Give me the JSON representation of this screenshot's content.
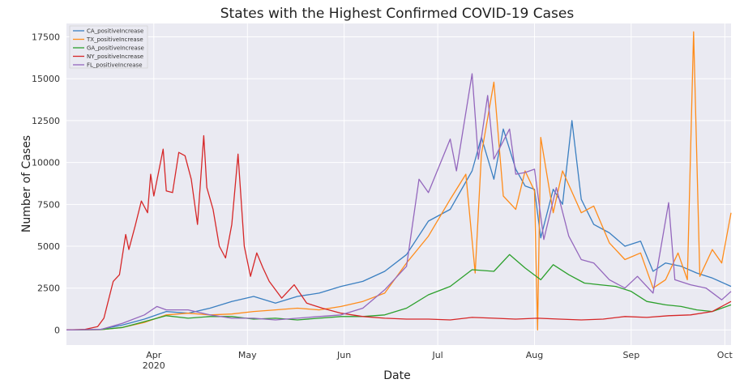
{
  "chart_data": {
    "type": "line",
    "title": "States with the Highest Confirmed COVID-19 Cases",
    "xlabel": "Date",
    "ylabel": "Number of Cases",
    "x_range": [
      "2020-03-04",
      "2020-10-03"
    ],
    "ylim": [
      -900,
      18300
    ],
    "grid": true,
    "legend_position": "top-left",
    "x_ticks": [
      {
        "date": "2020-04-01",
        "label": "Apr",
        "sub": "2020"
      },
      {
        "date": "2020-05-01",
        "label": "May",
        "sub": ""
      },
      {
        "date": "2020-06-01",
        "label": "Jun",
        "sub": ""
      },
      {
        "date": "2020-07-01",
        "label": "Jul",
        "sub": ""
      },
      {
        "date": "2020-08-01",
        "label": "Aug",
        "sub": ""
      },
      {
        "date": "2020-09-01",
        "label": "Sep",
        "sub": ""
      },
      {
        "date": "2020-10-01",
        "label": "Oct",
        "sub": ""
      }
    ],
    "y_ticks": [
      0,
      2500,
      5000,
      7500,
      10000,
      12500,
      15000,
      17500
    ],
    "series": [
      {
        "name": "CA_positiveIncrease",
        "color": "#3a7fc1",
        "points": [
          [
            "2020-03-04",
            0
          ],
          [
            "2020-03-15",
            40
          ],
          [
            "2020-03-22",
            300
          ],
          [
            "2020-03-29",
            650
          ],
          [
            "2020-04-05",
            1100
          ],
          [
            "2020-04-12",
            1000
          ],
          [
            "2020-04-19",
            1300
          ],
          [
            "2020-04-26",
            1700
          ],
          [
            "2020-05-03",
            2000
          ],
          [
            "2020-05-10",
            1600
          ],
          [
            "2020-05-17",
            2000
          ],
          [
            "2020-05-24",
            2200
          ],
          [
            "2020-05-31",
            2600
          ],
          [
            "2020-06-07",
            2900
          ],
          [
            "2020-06-14",
            3500
          ],
          [
            "2020-06-21",
            4500
          ],
          [
            "2020-06-28",
            6500
          ],
          [
            "2020-07-05",
            7200
          ],
          [
            "2020-07-12",
            9500
          ],
          [
            "2020-07-15",
            11500
          ],
          [
            "2020-07-19",
            9000
          ],
          [
            "2020-07-22",
            12000
          ],
          [
            "2020-07-26",
            9600
          ],
          [
            "2020-07-29",
            8600
          ],
          [
            "2020-08-01",
            8400
          ],
          [
            "2020-08-03",
            5500
          ],
          [
            "2020-08-07",
            8400
          ],
          [
            "2020-08-10",
            7500
          ],
          [
            "2020-08-13",
            12500
          ],
          [
            "2020-08-16",
            7800
          ],
          [
            "2020-08-20",
            6300
          ],
          [
            "2020-08-25",
            5800
          ],
          [
            "2020-08-30",
            5000
          ],
          [
            "2020-09-04",
            5300
          ],
          [
            "2020-09-08",
            3500
          ],
          [
            "2020-09-12",
            4000
          ],
          [
            "2020-09-17",
            3800
          ],
          [
            "2020-09-22",
            3400
          ],
          [
            "2020-09-27",
            3100
          ],
          [
            "2020-10-03",
            2600
          ]
        ]
      },
      {
        "name": "TX_positiveIncrease",
        "color": "#ff8c1a",
        "points": [
          [
            "2020-03-04",
            0
          ],
          [
            "2020-03-15",
            20
          ],
          [
            "2020-03-22",
            150
          ],
          [
            "2020-03-29",
            450
          ],
          [
            "2020-04-05",
            900
          ],
          [
            "2020-04-12",
            1000
          ],
          [
            "2020-04-19",
            900
          ],
          [
            "2020-04-26",
            950
          ],
          [
            "2020-05-03",
            1100
          ],
          [
            "2020-05-10",
            1200
          ],
          [
            "2020-05-17",
            1300
          ],
          [
            "2020-05-24",
            1200
          ],
          [
            "2020-05-31",
            1400
          ],
          [
            "2020-06-07",
            1700
          ],
          [
            "2020-06-14",
            2200
          ],
          [
            "2020-06-21",
            4000
          ],
          [
            "2020-06-28",
            5600
          ],
          [
            "2020-07-05",
            7800
          ],
          [
            "2020-07-10",
            9300
          ],
          [
            "2020-07-13",
            3400
          ],
          [
            "2020-07-15",
            10500
          ],
          [
            "2020-07-19",
            14800
          ],
          [
            "2020-07-22",
            8000
          ],
          [
            "2020-07-26",
            7200
          ],
          [
            "2020-07-29",
            9500
          ],
          [
            "2020-08-01",
            8300
          ],
          [
            "2020-08-02",
            0
          ],
          [
            "2020-08-03",
            11500
          ],
          [
            "2020-08-07",
            7000
          ],
          [
            "2020-08-10",
            9500
          ],
          [
            "2020-08-16",
            7000
          ],
          [
            "2020-08-20",
            7400
          ],
          [
            "2020-08-25",
            5200
          ],
          [
            "2020-08-30",
            4200
          ],
          [
            "2020-09-04",
            4600
          ],
          [
            "2020-09-08",
            2500
          ],
          [
            "2020-09-12",
            3000
          ],
          [
            "2020-09-16",
            4600
          ],
          [
            "2020-09-19",
            3000
          ],
          [
            "2020-09-21",
            17800
          ],
          [
            "2020-09-23",
            3200
          ],
          [
            "2020-09-27",
            4800
          ],
          [
            "2020-09-30",
            4000
          ],
          [
            "2020-10-03",
            7000
          ]
        ]
      },
      {
        "name": "GA_positiveIncrease",
        "color": "#2ca02c",
        "points": [
          [
            "2020-03-04",
            0
          ],
          [
            "2020-03-15",
            20
          ],
          [
            "2020-03-22",
            150
          ],
          [
            "2020-03-29",
            500
          ],
          [
            "2020-04-05",
            850
          ],
          [
            "2020-04-12",
            700
          ],
          [
            "2020-04-19",
            800
          ],
          [
            "2020-04-26",
            800
          ],
          [
            "2020-05-03",
            650
          ],
          [
            "2020-05-10",
            700
          ],
          [
            "2020-05-17",
            600
          ],
          [
            "2020-05-24",
            700
          ],
          [
            "2020-05-31",
            800
          ],
          [
            "2020-06-07",
            800
          ],
          [
            "2020-06-14",
            900
          ],
          [
            "2020-06-21",
            1300
          ],
          [
            "2020-06-28",
            2100
          ],
          [
            "2020-07-05",
            2600
          ],
          [
            "2020-07-12",
            3600
          ],
          [
            "2020-07-19",
            3500
          ],
          [
            "2020-07-24",
            4500
          ],
          [
            "2020-07-29",
            3700
          ],
          [
            "2020-08-03",
            3000
          ],
          [
            "2020-08-07",
            3900
          ],
          [
            "2020-08-12",
            3300
          ],
          [
            "2020-08-17",
            2800
          ],
          [
            "2020-08-22",
            2700
          ],
          [
            "2020-08-27",
            2600
          ],
          [
            "2020-09-01",
            2300
          ],
          [
            "2020-09-06",
            1700
          ],
          [
            "2020-09-12",
            1500
          ],
          [
            "2020-09-17",
            1400
          ],
          [
            "2020-09-22",
            1200
          ],
          [
            "2020-09-27",
            1100
          ],
          [
            "2020-10-03",
            1500
          ]
        ]
      },
      {
        "name": "NY_positiveIncrease",
        "color": "#d62728",
        "points": [
          [
            "2020-03-04",
            0
          ],
          [
            "2020-03-10",
            40
          ],
          [
            "2020-03-14",
            200
          ],
          [
            "2020-03-16",
            700
          ],
          [
            "2020-03-19",
            2900
          ],
          [
            "2020-03-21",
            3300
          ],
          [
            "2020-03-23",
            5700
          ],
          [
            "2020-03-24",
            4800
          ],
          [
            "2020-03-26",
            6200
          ],
          [
            "2020-03-28",
            7700
          ],
          [
            "2020-03-30",
            7000
          ],
          [
            "2020-03-31",
            9300
          ],
          [
            "2020-04-01",
            8000
          ],
          [
            "2020-04-04",
            10800
          ],
          [
            "2020-04-05",
            8300
          ],
          [
            "2020-04-07",
            8200
          ],
          [
            "2020-04-09",
            10600
          ],
          [
            "2020-04-11",
            10400
          ],
          [
            "2020-04-13",
            9000
          ],
          [
            "2020-04-15",
            6300
          ],
          [
            "2020-04-17",
            11600
          ],
          [
            "2020-04-18",
            8500
          ],
          [
            "2020-04-20",
            7200
          ],
          [
            "2020-04-22",
            5000
          ],
          [
            "2020-04-24",
            4300
          ],
          [
            "2020-04-26",
            6300
          ],
          [
            "2020-04-28",
            10500
          ],
          [
            "2020-04-30",
            5000
          ],
          [
            "2020-05-02",
            3200
          ],
          [
            "2020-05-04",
            4600
          ],
          [
            "2020-05-06",
            3700
          ],
          [
            "2020-05-08",
            2900
          ],
          [
            "2020-05-12",
            1900
          ],
          [
            "2020-05-16",
            2700
          ],
          [
            "2020-05-20",
            1600
          ],
          [
            "2020-05-25",
            1300
          ],
          [
            "2020-05-31",
            1000
          ],
          [
            "2020-06-07",
            800
          ],
          [
            "2020-06-14",
            700
          ],
          [
            "2020-06-21",
            650
          ],
          [
            "2020-06-28",
            650
          ],
          [
            "2020-07-05",
            600
          ],
          [
            "2020-07-12",
            750
          ],
          [
            "2020-07-19",
            700
          ],
          [
            "2020-07-26",
            650
          ],
          [
            "2020-08-02",
            700
          ],
          [
            "2020-08-09",
            650
          ],
          [
            "2020-08-16",
            600
          ],
          [
            "2020-08-23",
            650
          ],
          [
            "2020-08-30",
            800
          ],
          [
            "2020-09-06",
            750
          ],
          [
            "2020-09-13",
            850
          ],
          [
            "2020-09-20",
            900
          ],
          [
            "2020-09-27",
            1100
          ],
          [
            "2020-10-03",
            1700
          ]
        ]
      },
      {
        "name": "FL_positiveIncrease",
        "color": "#9467bd",
        "points": [
          [
            "2020-03-04",
            0
          ],
          [
            "2020-03-15",
            30
          ],
          [
            "2020-03-22",
            400
          ],
          [
            "2020-03-29",
            900
          ],
          [
            "2020-04-02",
            1400
          ],
          [
            "2020-04-05",
            1200
          ],
          [
            "2020-04-12",
            1200
          ],
          [
            "2020-04-19",
            900
          ],
          [
            "2020-04-26",
            700
          ],
          [
            "2020-05-03",
            700
          ],
          [
            "2020-05-10",
            600
          ],
          [
            "2020-05-17",
            700
          ],
          [
            "2020-05-24",
            800
          ],
          [
            "2020-05-31",
            900
          ],
          [
            "2020-06-07",
            1300
          ],
          [
            "2020-06-14",
            2400
          ],
          [
            "2020-06-21",
            3800
          ],
          [
            "2020-06-25",
            9000
          ],
          [
            "2020-06-28",
            8200
          ],
          [
            "2020-07-05",
            11400
          ],
          [
            "2020-07-07",
            9500
          ],
          [
            "2020-07-12",
            15300
          ],
          [
            "2020-07-14",
            10200
          ],
          [
            "2020-07-17",
            14000
          ],
          [
            "2020-07-19",
            10200
          ],
          [
            "2020-07-24",
            12000
          ],
          [
            "2020-07-26",
            9300
          ],
          [
            "2020-07-29",
            9400
          ],
          [
            "2020-08-01",
            9600
          ],
          [
            "2020-08-04",
            5400
          ],
          [
            "2020-08-08",
            8500
          ],
          [
            "2020-08-12",
            5600
          ],
          [
            "2020-08-16",
            4200
          ],
          [
            "2020-08-20",
            4000
          ],
          [
            "2020-08-25",
            3000
          ],
          [
            "2020-08-30",
            2500
          ],
          [
            "2020-09-03",
            3200
          ],
          [
            "2020-09-08",
            2200
          ],
          [
            "2020-09-13",
            7600
          ],
          [
            "2020-09-15",
            3000
          ],
          [
            "2020-09-20",
            2700
          ],
          [
            "2020-09-25",
            2500
          ],
          [
            "2020-09-30",
            1800
          ],
          [
            "2020-10-03",
            2300
          ]
        ]
      }
    ]
  }
}
